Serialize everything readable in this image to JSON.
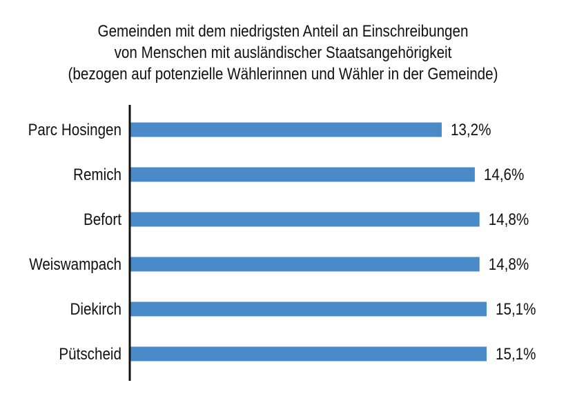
{
  "chart_data": {
    "type": "bar",
    "orientation": "horizontal",
    "title_lines": [
      "Gemeinden mit dem niedrigsten Anteil an Einschreibungen",
      "von Menschen mit ausländischer Staatsangehörigkeit",
      "(bezogen auf potenzielle Wählerinnen und Wähler in der Gemeinde)"
    ],
    "categories": [
      "Parc Hosingen",
      "Remich",
      "Befort",
      "Weiswampach",
      "Diekirch",
      "Pütscheid"
    ],
    "values": [
      13.2,
      14.6,
      14.8,
      14.8,
      15.1,
      15.1
    ],
    "value_labels": [
      "13,2%",
      "14,6%",
      "14,8%",
      "14,8%",
      "15,1%",
      "15,1%"
    ],
    "bar_color": "#4a8ac8",
    "axis_color": "#111111",
    "grid": false,
    "legend": "none"
  }
}
